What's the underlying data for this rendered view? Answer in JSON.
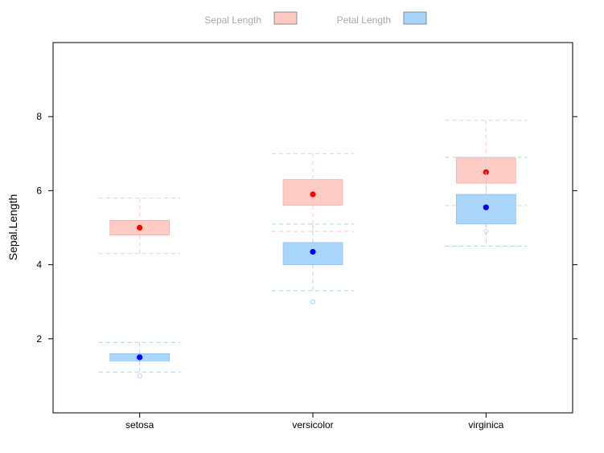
{
  "chart_data": {
    "type": "box",
    "ylabel": "Sepal.Length",
    "xlabel": "",
    "ylim": [
      0,
      10
    ],
    "yticks": [
      2,
      4,
      6,
      8
    ],
    "categories": [
      "setosa",
      "versicolor",
      "virginica"
    ],
    "grid": false,
    "legend": {
      "placement": "top"
    },
    "series": [
      {
        "name": "Sepal Length",
        "box_color": "#ffc9c2",
        "box_border": "#e8a8a0",
        "point_color": "#ff0000",
        "whisker_color": "#ffc9c2",
        "values": [
          {
            "category": "setosa",
            "min": 4.3,
            "q1": 4.8,
            "median": 5.0,
            "q3": 5.2,
            "max": 5.8,
            "outliers": []
          },
          {
            "category": "versicolor",
            "min": 4.9,
            "q1": 5.6,
            "median": 5.9,
            "q3": 6.3,
            "max": 7.0,
            "outliers": []
          },
          {
            "category": "virginica",
            "min": 5.6,
            "q1": 6.2,
            "median": 6.5,
            "q3": 6.9,
            "max": 7.9,
            "outliers": [
              4.9
            ]
          }
        ]
      },
      {
        "name": "Petal Length",
        "box_color": "#a6d4fb",
        "box_border": "#7fb6e8",
        "point_color": "#0000ff",
        "whisker_color": "#a6d4fb",
        "values": [
          {
            "category": "setosa",
            "min": 1.1,
            "q1": 1.4,
            "median": 1.5,
            "q3": 1.6,
            "max": 1.9,
            "outliers": [
              1.0
            ]
          },
          {
            "category": "versicolor",
            "min": 3.3,
            "q1": 4.0,
            "median": 4.35,
            "q3": 4.6,
            "max": 5.1,
            "outliers": [
              3.0
            ]
          },
          {
            "category": "virginica",
            "min": 4.5,
            "q1": 5.1,
            "median": 5.55,
            "q3": 5.9,
            "max": 6.9,
            "outliers": []
          }
        ]
      }
    ]
  }
}
